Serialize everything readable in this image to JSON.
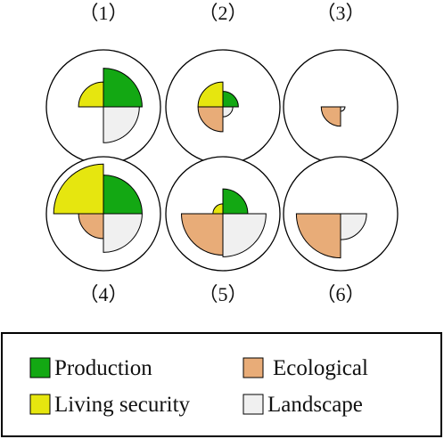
{
  "chart_data": {
    "type": "polar-area quadrant",
    "colors": {
      "production": "#13a813",
      "living_security": "#e6e60f",
      "ecological": "#e8ac78",
      "landscape": "#f0f0f0",
      "outline": "#000000"
    },
    "legend": {
      "entries": [
        {
          "key": "production",
          "label": "Production"
        },
        {
          "key": "ecological",
          "label": "Ecological"
        },
        {
          "key": "living_security",
          "label": "Living security"
        },
        {
          "key": "landscape",
          "label": "Landscape"
        }
      ]
    },
    "panels": [
      {
        "label": "（1）",
        "values": {
          "production": 0.7,
          "living_security": 0.45,
          "ecological": 0.0,
          "landscape": 0.65
        }
      },
      {
        "label": "（2）",
        "values": {
          "production": 0.28,
          "living_security": 0.45,
          "ecological": 0.45,
          "landscape": 0.18
        }
      },
      {
        "label": "（3）",
        "values": {
          "production": 0.0,
          "living_security": 0.0,
          "ecological": 0.35,
          "landscape": 0.08
        }
      },
      {
        "label": "（4）",
        "values": {
          "production": 0.7,
          "living_security": 0.9,
          "ecological": 0.45,
          "landscape": 0.7
        }
      },
      {
        "label": "（5）",
        "values": {
          "production": 0.45,
          "living_security": 0.18,
          "ecological": 0.75,
          "landscape": 0.78
        }
      },
      {
        "label": "（6）",
        "values": {
          "production": 0.0,
          "living_security": 0.0,
          "ecological": 0.8,
          "landscape": 0.47
        }
      }
    ]
  }
}
